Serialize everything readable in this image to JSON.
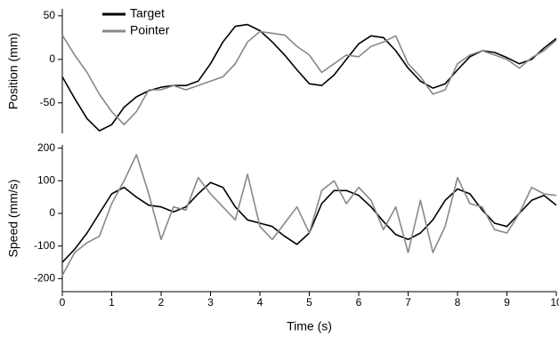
{
  "chart_data": [
    {
      "type": "line",
      "ylabel": "Position (mm)",
      "legend": "upper left",
      "x": [
        0,
        0.25,
        0.5,
        0.75,
        1,
        1.25,
        1.5,
        1.75,
        2,
        2.25,
        2.5,
        2.75,
        3,
        3.25,
        3.5,
        3.75,
        4,
        4.25,
        4.5,
        4.75,
        5,
        5.25,
        5.5,
        5.75,
        6,
        6.25,
        6.5,
        6.75,
        7,
        7.25,
        7.5,
        7.75,
        8,
        8.25,
        8.5,
        8.75,
        9,
        9.25,
        9.5,
        9.75,
        10
      ],
      "xlim": [
        0,
        10
      ],
      "ylim": [
        -85,
        58
      ],
      "yticks": [
        -50,
        0,
        50
      ],
      "series": [
        {
          "name": "Target",
          "color": "#000000",
          "values": [
            -20,
            -45,
            -68,
            -82,
            -75,
            -55,
            -43,
            -36,
            -32,
            -30,
            -30,
            -25,
            -5,
            20,
            38,
            40,
            33,
            20,
            5,
            -12,
            -28,
            -30,
            -18,
            0,
            18,
            27,
            25,
            10,
            -10,
            -25,
            -33,
            -28,
            -12,
            3,
            10,
            8,
            2,
            -5,
            0,
            13,
            24
          ]
        },
        {
          "name": "Pointer",
          "color": "#888888",
          "values": [
            28,
            5,
            -15,
            -40,
            -60,
            -75,
            -60,
            -35,
            -35,
            -30,
            -35,
            -30,
            -25,
            -20,
            -5,
            20,
            32,
            30,
            28,
            15,
            5,
            -15,
            -5,
            5,
            3,
            15,
            20,
            27,
            -5,
            -20,
            -40,
            -35,
            -5,
            5,
            10,
            5,
            0,
            -10,
            2,
            10,
            22
          ]
        }
      ]
    },
    {
      "type": "line",
      "ylabel": "Speed (mm/s)",
      "xlabel": "Time (s)",
      "x": [
        0,
        0.25,
        0.5,
        0.75,
        1,
        1.25,
        1.5,
        1.75,
        2,
        2.25,
        2.5,
        2.75,
        3,
        3.25,
        3.5,
        3.75,
        4,
        4.25,
        4.5,
        4.75,
        5,
        5.25,
        5.5,
        5.75,
        6,
        6.25,
        6.5,
        6.75,
        7,
        7.25,
        7.5,
        7.75,
        8,
        8.25,
        8.5,
        8.75,
        9,
        9.25,
        9.5,
        9.75,
        10
      ],
      "xlim": [
        0,
        10
      ],
      "xticks": [
        0,
        1,
        2,
        3,
        4,
        5,
        6,
        7,
        8,
        9,
        10
      ],
      "ylim": [
        -240,
        210
      ],
      "yticks": [
        -200,
        -100,
        0,
        100,
        200
      ],
      "series": [
        {
          "color": "#000000",
          "values": [
            -150,
            -110,
            -60,
            0,
            60,
            80,
            50,
            25,
            20,
            5,
            20,
            60,
            95,
            80,
            20,
            -20,
            -30,
            -40,
            -70,
            -95,
            -60,
            30,
            70,
            70,
            55,
            20,
            -25,
            -65,
            -80,
            -60,
            -20,
            40,
            75,
            60,
            10,
            -30,
            -40,
            0,
            40,
            55,
            25
          ]
        },
        {
          "color": "#888888",
          "values": [
            -190,
            -120,
            -90,
            -70,
            30,
            100,
            180,
            60,
            -80,
            20,
            10,
            110,
            60,
            20,
            -20,
            120,
            -40,
            -80,
            -30,
            20,
            -60,
            70,
            100,
            30,
            80,
            40,
            -50,
            20,
            -120,
            40,
            -120,
            -40,
            110,
            30,
            20,
            -50,
            -60,
            0,
            80,
            60,
            55
          ]
        }
      ]
    }
  ]
}
